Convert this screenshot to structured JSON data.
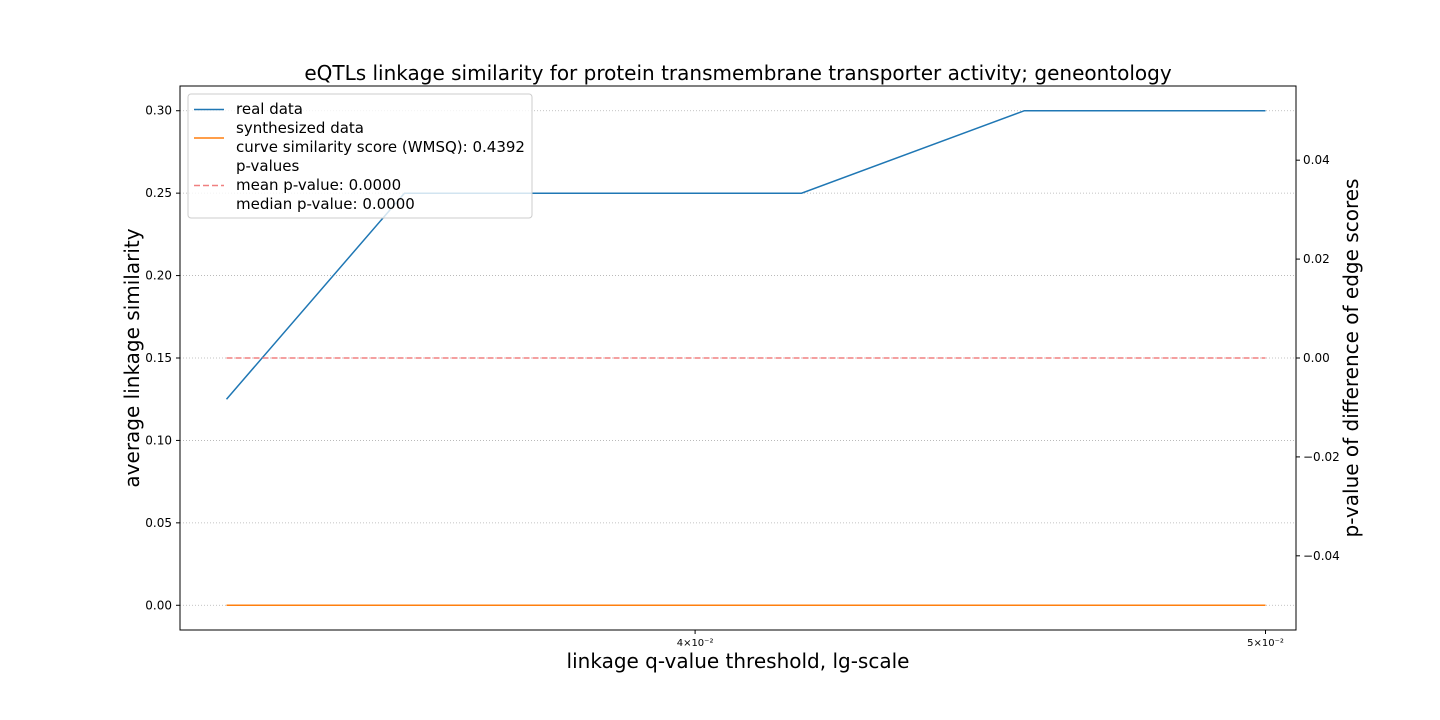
{
  "chart_data": {
    "type": "line",
    "title": "eQTLs linkage similarity for protein transmembrane transporter activity; geneontology",
    "xlabel": "linkage q-value threshold, lg-scale",
    "ylabel": "average linkage similarity",
    "y2label": "p-value of difference of edge scores",
    "x_scale": "log",
    "xlim": [
      0.0327,
      0.0506
    ],
    "ylim": [
      -0.015,
      0.315
    ],
    "y2lim": [
      -0.055,
      0.055
    ],
    "x_ticks": [
      {
        "value": 0.04,
        "label": "4×10⁻²"
      },
      {
        "value": 0.05,
        "label": "5×10⁻²"
      }
    ],
    "y_ticks": [
      {
        "value": 0.0,
        "label": "0.00"
      },
      {
        "value": 0.05,
        "label": "0.05"
      },
      {
        "value": 0.1,
        "label": "0.10"
      },
      {
        "value": 0.15,
        "label": "0.15"
      },
      {
        "value": 0.2,
        "label": "0.20"
      },
      {
        "value": 0.25,
        "label": "0.25"
      },
      {
        "value": 0.3,
        "label": "0.30"
      }
    ],
    "y2_ticks": [
      {
        "value": -0.04,
        "label": "−0.04"
      },
      {
        "value": -0.02,
        "label": "−0.02"
      },
      {
        "value": 0.0,
        "label": "0.00"
      },
      {
        "value": 0.02,
        "label": "0.02"
      },
      {
        "value": 0.04,
        "label": "0.04"
      }
    ],
    "grid": true,
    "legend_position": "top-left",
    "x": [
      0.0333,
      0.0357,
      0.0385,
      0.0417,
      0.0455,
      0.05
    ],
    "series": [
      {
        "name": "real data",
        "axis": "left",
        "style": "solid",
        "color": "#1f77b4",
        "values": [
          0.125,
          0.25,
          0.25,
          0.25,
          0.3,
          0.3
        ]
      },
      {
        "name": "synthesized data",
        "axis": "left",
        "style": "solid",
        "color": "#ff7f0e",
        "values": [
          0.0,
          0.0,
          0.0,
          0.0,
          0.0,
          0.0
        ]
      },
      {
        "name": "p-values",
        "axis": "right",
        "style": "dashed",
        "color": "#f08080",
        "values": [
          0.0,
          0.0,
          0.0,
          0.0,
          0.0,
          0.0
        ]
      }
    ],
    "legend": [
      {
        "series": 0,
        "lines": [
          "real data"
        ]
      },
      {
        "series": 1,
        "lines": [
          "synthesized data",
          "curve similarity score (WMSQ): 0.4392"
        ]
      },
      {
        "series": 2,
        "lines": [
          "p-values",
          "mean p-value: 0.0000",
          "median p-value: 0.0000"
        ]
      }
    ]
  }
}
